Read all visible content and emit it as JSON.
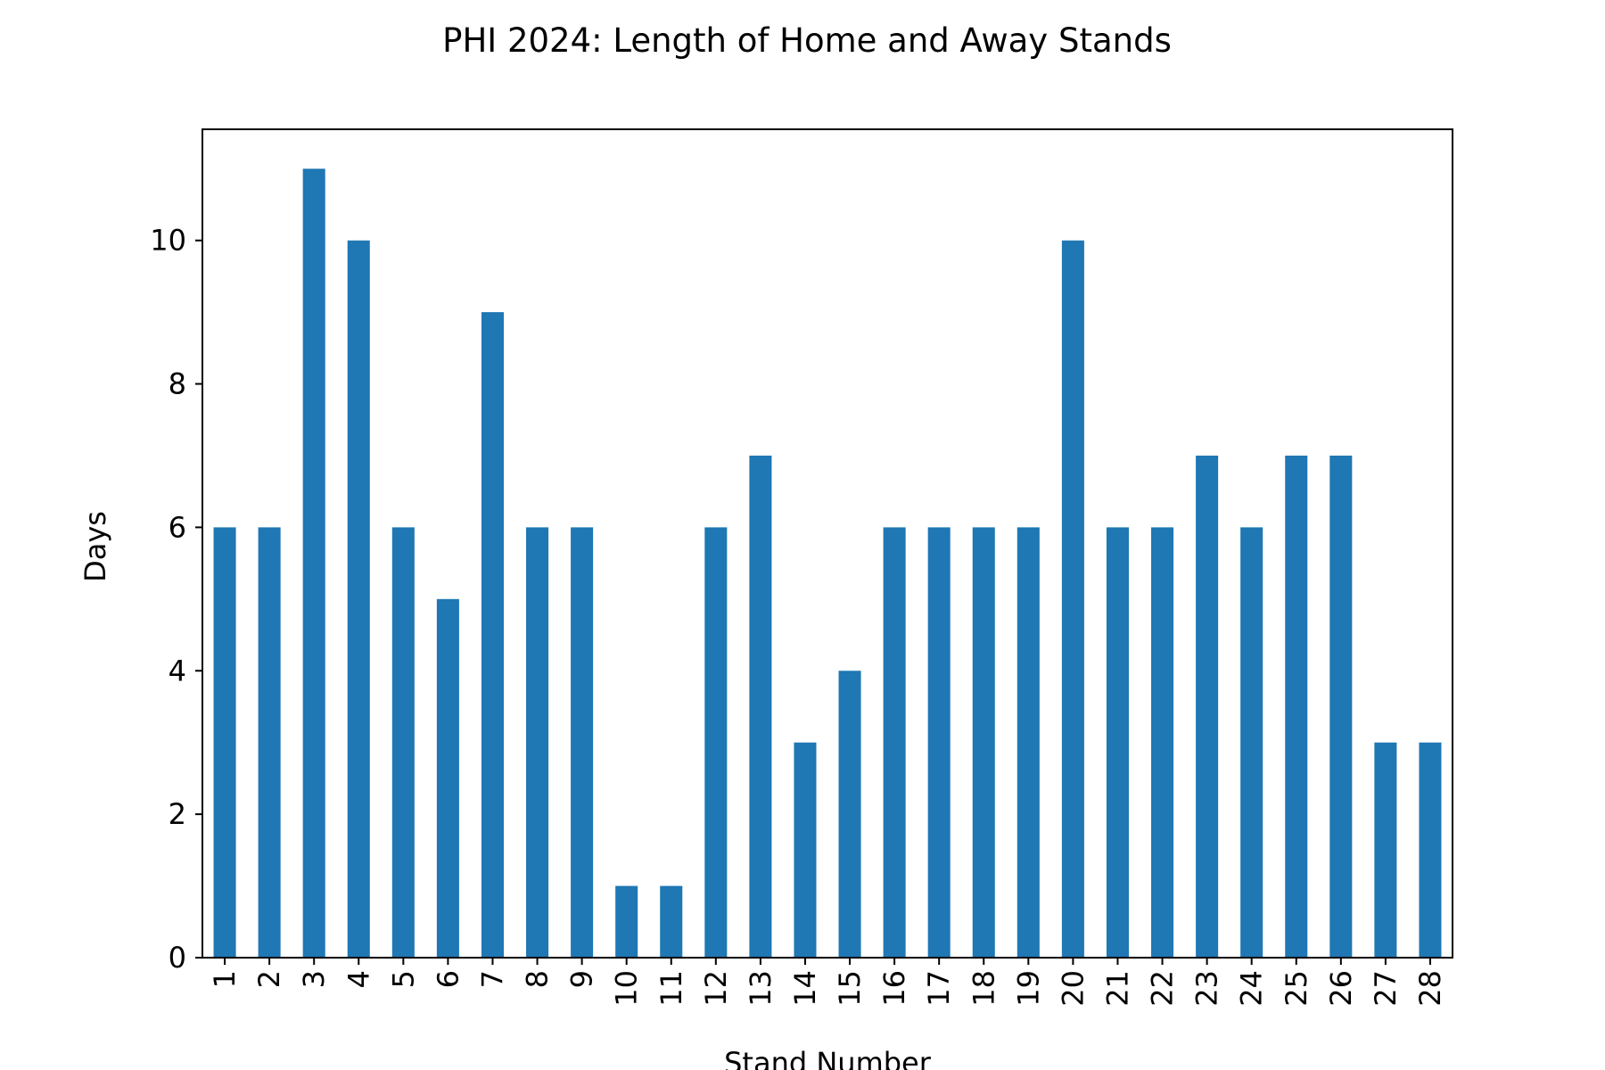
{
  "chart_data": {
    "type": "bar",
    "title": "PHI 2024: Length of Home and Away Stands",
    "xlabel": "Stand Number",
    "ylabel": "Days",
    "categories": [
      "1",
      "2",
      "3",
      "4",
      "5",
      "6",
      "7",
      "8",
      "9",
      "10",
      "11",
      "12",
      "13",
      "14",
      "15",
      "16",
      "17",
      "18",
      "19",
      "20",
      "21",
      "22",
      "23",
      "24",
      "25",
      "26",
      "27",
      "28"
    ],
    "values": [
      6,
      6,
      11,
      10,
      6,
      5,
      9,
      6,
      6,
      1,
      1,
      6,
      7,
      3,
      4,
      6,
      6,
      6,
      6,
      10,
      6,
      6,
      7,
      6,
      7,
      7,
      3,
      3
    ],
    "ylim": [
      0,
      11.55
    ],
    "yticks": [
      "0",
      "2",
      "4",
      "6",
      "8",
      "10"
    ],
    "bar_color": "#1f77b4",
    "grid": false,
    "legend": "none"
  }
}
